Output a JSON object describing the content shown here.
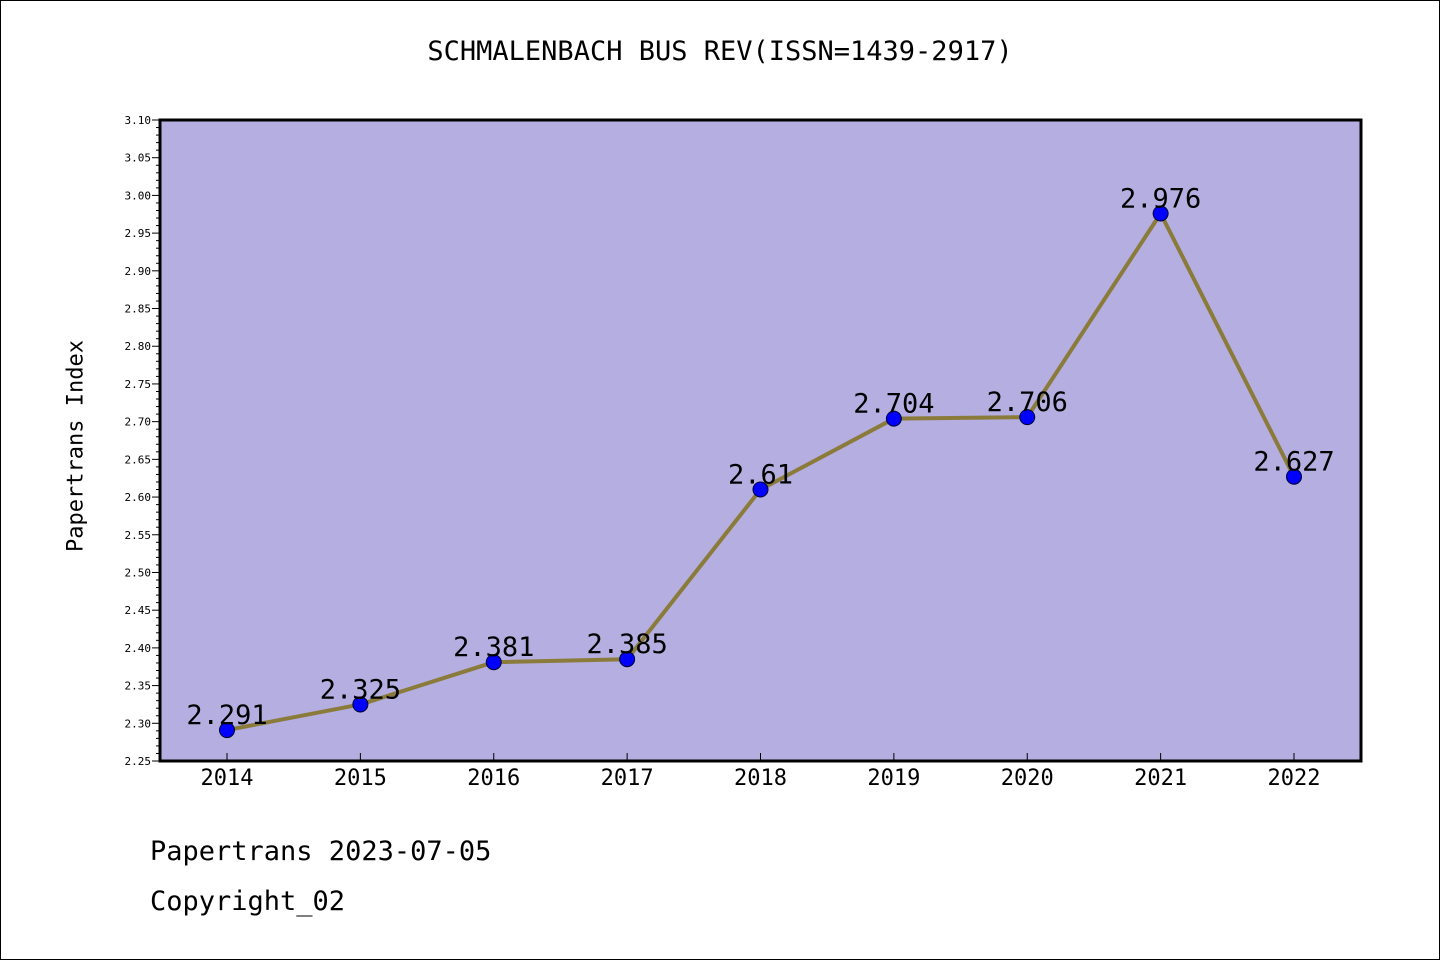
{
  "title": "SCHMALENBACH BUS REV(ISSN=1439-2917)",
  "footer": {
    "date_line": "Papertrans 2023-07-05",
    "copyright": "Copyright_02"
  },
  "colors": {
    "plot_background": "#b4aee1",
    "line": "#8b7b3a",
    "marker": "#0000ff"
  },
  "chart_data": {
    "type": "line",
    "title": "SCHMALENBACH BUS REV(ISSN=1439-2917)",
    "xlabel": "",
    "ylabel": "Papertrans Index",
    "categories": [
      "2014",
      "2015",
      "2016",
      "2017",
      "2018",
      "2019",
      "2020",
      "2021",
      "2022"
    ],
    "values": [
      2.291,
      2.325,
      2.381,
      2.385,
      2.61,
      2.704,
      2.706,
      2.976,
      2.627
    ],
    "data_labels": [
      "2.291",
      "2.325",
      "2.381",
      "2.385",
      "2.61",
      "2.704",
      "2.706",
      "2.976",
      "2.627"
    ],
    "ylim": [
      2.25,
      3.1
    ],
    "yticks": [
      "2.25",
      "2.30",
      "2.35",
      "2.40",
      "2.45",
      "2.50",
      "2.55",
      "2.60",
      "2.65",
      "2.70",
      "2.75",
      "2.80",
      "2.85",
      "2.90",
      "2.95",
      "3.00",
      "3.05",
      "3.10"
    ],
    "grid": false,
    "legend": "none"
  }
}
